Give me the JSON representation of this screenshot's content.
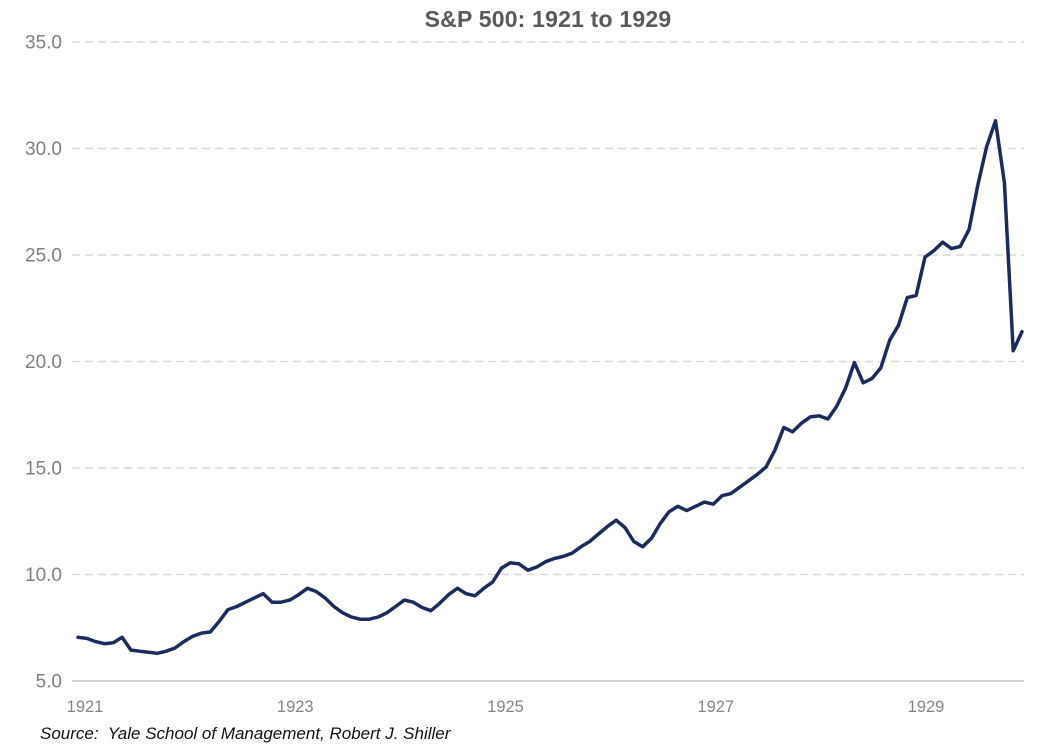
{
  "chart": {
    "title": "S&P 500: 1921 to 1929",
    "source_note": "Source:  Yale School of Management, Robert J. Shiller"
  },
  "chart_data": {
    "type": "line",
    "title": "S&P 500: 1921 to 1929",
    "xlabel": "",
    "ylabel": "",
    "frequency": "monthly",
    "x_start": "1921-01",
    "x_end": "1929-12",
    "x_tick_labels": [
      "1921",
      "1923",
      "1925",
      "1927",
      "1929"
    ],
    "y_tick_labels": [
      "35.0",
      "30.0",
      "25.0",
      "20.0",
      "15.0",
      "10.0",
      "5.0"
    ],
    "ylim": [
      5.0,
      35.0
    ],
    "grid": "horizontal-dashed",
    "legend": "none",
    "series": [
      {
        "name": "S&P 500 (monthly)",
        "values": [
          7.05,
          7.0,
          6.85,
          6.75,
          6.8,
          7.05,
          6.45,
          6.4,
          6.35,
          6.3,
          6.4,
          6.55,
          6.85,
          7.1,
          7.25,
          7.3,
          7.8,
          8.35,
          8.5,
          8.7,
          8.9,
          9.1,
          8.7,
          8.7,
          8.8,
          9.05,
          9.35,
          9.2,
          8.9,
          8.5,
          8.2,
          8.0,
          7.9,
          7.9,
          8.0,
          8.2,
          8.5,
          8.8,
          8.7,
          8.45,
          8.3,
          8.65,
          9.05,
          9.35,
          9.1,
          9.0,
          9.35,
          9.65,
          10.3,
          10.55,
          10.5,
          10.2,
          10.35,
          10.6,
          10.75,
          10.85,
          11.0,
          11.3,
          11.55,
          11.9,
          12.25,
          12.55,
          12.2,
          11.55,
          11.3,
          11.7,
          12.4,
          12.95,
          13.2,
          13.0,
          13.2,
          13.4,
          13.3,
          13.7,
          13.8,
          14.1,
          14.4,
          14.7,
          15.05,
          15.85,
          16.9,
          16.7,
          17.1,
          17.4,
          17.45,
          17.3,
          17.9,
          18.75,
          19.95,
          19.0,
          19.2,
          19.7,
          21.0,
          21.7,
          23.0,
          23.1,
          24.9,
          25.2,
          25.6,
          25.3,
          25.4,
          26.2,
          28.3,
          30.1,
          31.3,
          28.4,
          20.5,
          21.4
        ]
      }
    ],
    "colors": {
      "line": "#1c2b5d",
      "gridline": "#d9d9d9",
      "axis_line": "#c3c3c3",
      "title_text": "#595959",
      "y_tick_text": "#7f7f7f",
      "x_tick_text": "#848484",
      "source_text": "#111111",
      "background": "#ffffff"
    }
  }
}
